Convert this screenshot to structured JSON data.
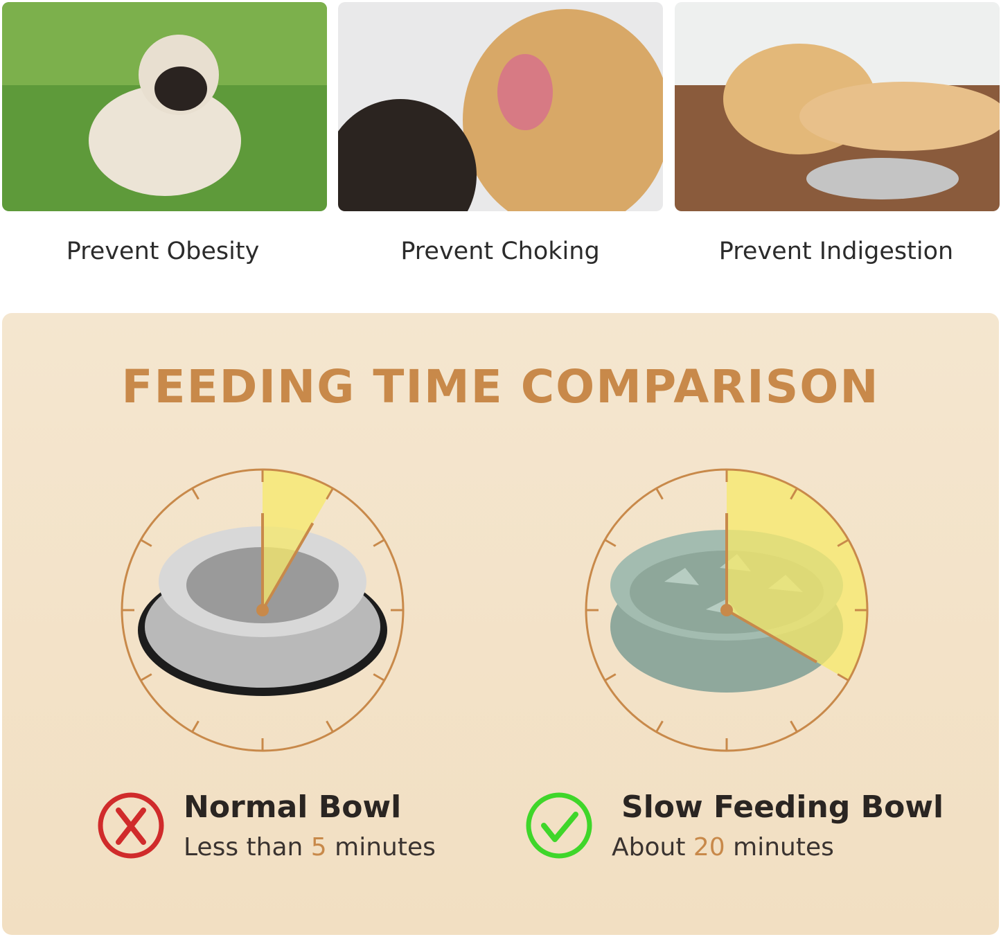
{
  "photos": [
    {
      "caption": "Prevent Obesity",
      "subject": "pug-on-grass"
    },
    {
      "caption": "Prevent Choking",
      "subject": "golden-retriever-mouth-check"
    },
    {
      "caption": "Prevent Indigestion",
      "subject": "labrador-lying-by-bowl"
    }
  ],
  "comparison": {
    "title": "FEEDING TIME COMPARISON",
    "colors": {
      "accent": "#c8894a",
      "sector": "#f7e96a",
      "bad": "#d02b2b",
      "good": "#3fd62a",
      "panel": "#f3e3ca"
    },
    "items": [
      {
        "name": "Normal Bowl",
        "prefix": "Less than ",
        "number": "5",
        "suffix": " minutes",
        "minutes": 5,
        "status": "x-mark-icon"
      },
      {
        "name": "Slow Feeding Bowl",
        "prefix": "About ",
        "number": "20",
        "suffix": " minutes",
        "minutes": 20,
        "status": "check-mark-icon"
      }
    ]
  }
}
